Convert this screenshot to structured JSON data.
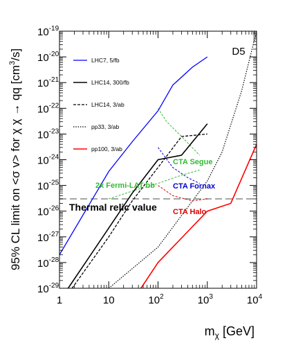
{
  "chart_data": {
    "type": "line",
    "panel_label": "D5",
    "xlabel": "m_χ [GeV]",
    "xlabel_main": "m",
    "xlabel_sub": "χ",
    "xlabel_unit": " [GeV]",
    "ylabel": "95% CL limit on <σ v> for χ χ̄ → qq [cm³/s]",
    "ylabel_main": "95% CL limit on <σ v> for χ χ",
    "ylabel_tail": " → qq [cm",
    "ylabel_sup": "3",
    "ylabel_end": "/s]",
    "xscale": "log",
    "yscale": "log",
    "xlim": [
      1,
      10000
    ],
    "ylim": [
      1e-29,
      1e-19
    ],
    "x_ticks": [
      {
        "value": 1,
        "base": "1",
        "exp": ""
      },
      {
        "value": 10,
        "base": "10",
        "exp": ""
      },
      {
        "value": 100,
        "base": "10",
        "exp": "2"
      },
      {
        "value": 1000,
        "base": "10",
        "exp": "3"
      },
      {
        "value": 10000,
        "base": "10",
        "exp": "4"
      }
    ],
    "y_ticks": [
      {
        "value": 1e-29,
        "base": "10",
        "exp": "-29"
      },
      {
        "value": 1e-28,
        "base": "10",
        "exp": "-28"
      },
      {
        "value": 1e-27,
        "base": "10",
        "exp": "-27"
      },
      {
        "value": 1e-26,
        "base": "10",
        "exp": "-26"
      },
      {
        "value": 1e-25,
        "base": "10",
        "exp": "-25"
      },
      {
        "value": 1e-24,
        "base": "10",
        "exp": "-24"
      },
      {
        "value": 1e-23,
        "base": "10",
        "exp": "-23"
      },
      {
        "value": 1e-22,
        "base": "10",
        "exp": "-22"
      },
      {
        "value": 1e-21,
        "base": "10",
        "exp": "-21"
      },
      {
        "value": 1e-20,
        "base": "10",
        "exp": "-20"
      },
      {
        "value": 1e-19,
        "base": "10",
        "exp": "-19"
      }
    ],
    "legend_position": "top-left",
    "series": [
      {
        "name": "LHC7, 5/fb",
        "color": "#0000ff",
        "style": "solid",
        "width": 1.3,
        "x": [
          1,
          10,
          30,
          100,
          200,
          500,
          1000
        ],
        "y": [
          2e-28,
          3.5e-25,
          5e-24,
          8e-23,
          8e-22,
          4e-21,
          1e-20
        ]
      },
      {
        "name": "LHC14, 300/fb",
        "color": "#000000",
        "style": "solid",
        "width": 1.6,
        "x": [
          1.5,
          10,
          30,
          100,
          300,
          1000
        ],
        "y": [
          1e-29,
          2.2e-27,
          5e-26,
          1e-24,
          1.5e-24,
          2.5e-23
        ]
      },
      {
        "name": "LHC14, 3/ab",
        "color": "#000000",
        "style": "dashed",
        "width": 1.3,
        "x": [
          1.8,
          10,
          30,
          100,
          300,
          1000
        ],
        "y": [
          1e-29,
          1e-27,
          2.5e-26,
          5e-25,
          8e-24,
          1e-23
        ]
      },
      {
        "name": "pp33, 3/ab",
        "color": "#000000",
        "style": "dotted",
        "width": 1.2,
        "x": [
          10,
          100,
          1000,
          2000,
          5000,
          10000
        ],
        "y": [
          1e-29,
          4e-28,
          1.5e-25,
          2e-24,
          5e-22,
          1e-19
        ]
      },
      {
        "name": "pp100, 3/ab",
        "color": "#ff0000",
        "style": "solid",
        "width": 1.6,
        "x": [
          45,
          100,
          1000,
          3000,
          10000
        ],
        "y": [
          1e-29,
          1e-28,
          1e-26,
          2e-26,
          4e-24
        ]
      }
    ],
    "indirect": [
      {
        "name": "CTA Segue",
        "color": "#33bb33",
        "x": [
          100,
          150,
          300,
          700
        ],
        "y": [
          1e-22,
          3e-23,
          8e-24,
          1.5e-24
        ]
      },
      {
        "name": "CTA Fornax",
        "color": "#0000cc",
        "x": [
          100,
          200,
          400,
          700
        ],
        "y": [
          3e-24,
          5e-25,
          2e-25,
          1.2e-25
        ]
      },
      {
        "name": "CTA Halo",
        "color": "#dd0000",
        "x": [
          100,
          200,
          500,
          1000
        ],
        "y": [
          1e-25,
          4e-26,
          2.5e-26,
          3e-26
        ]
      },
      {
        "name": "2x Fermi-LAT bb",
        "color": "#33bb33",
        "x": [
          10,
          30,
          100,
          300,
          700
        ],
        "y": [
          3e-26,
          6e-26,
          1.2e-25,
          2.5e-25,
          4e-25
        ]
      }
    ],
    "thermal_relic": {
      "label": "Thermal relic value",
      "value": 3e-26,
      "color": "#999999"
    }
  }
}
